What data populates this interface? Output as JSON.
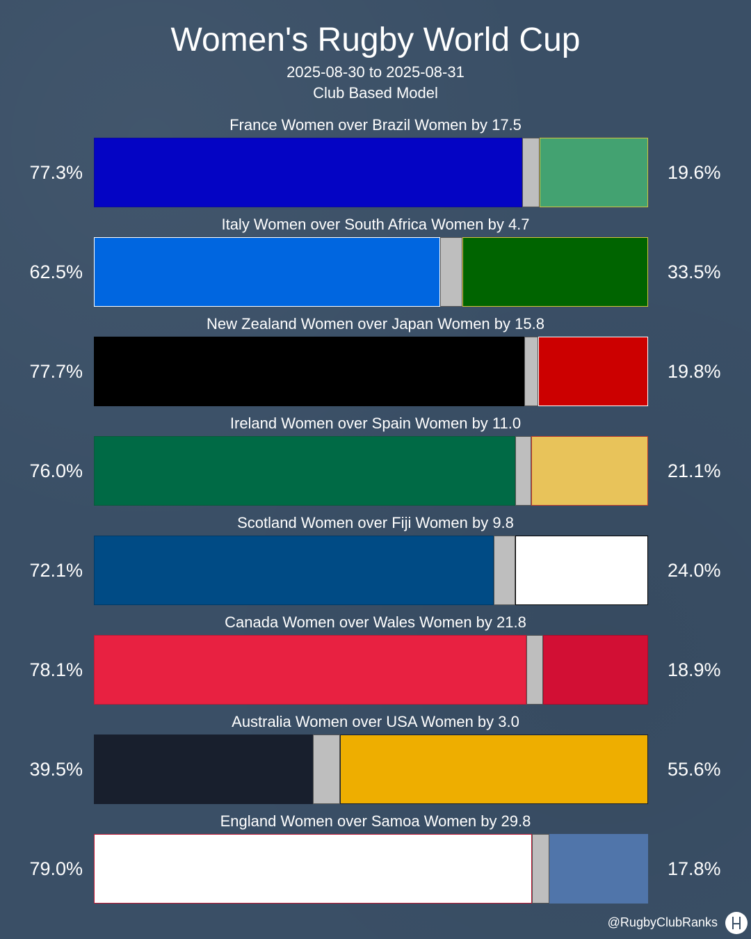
{
  "header": {
    "title": "Women's Rugby World Cup",
    "date_range": "2025-08-30 to 2025-08-31",
    "model": "Club Based Model"
  },
  "footer": {
    "credit": "@RugbyClubRanks",
    "logo_icon": "goalposts-icon"
  },
  "chart_data": {
    "type": "bar",
    "orientation": "horizontal-stacked",
    "segments": [
      "team1_win",
      "draw",
      "team2_win"
    ],
    "matches": [
      {
        "label": "France Women over Brazil Women by 17.5",
        "team1": "France Women",
        "team2": "Brazil Women",
        "margin": 17.5,
        "p1": 77.3,
        "p2": 19.6,
        "p1_label": "77.3%",
        "p2_label": "19.6%",
        "color1": "#0404c4",
        "color2": "#43a271",
        "border1": "#0a0a9a",
        "border2": "#d4c53a"
      },
      {
        "label": "Italy Women over South Africa Women by 4.7",
        "team1": "Italy Women",
        "team2": "South Africa Women",
        "margin": 4.7,
        "p1": 62.5,
        "p2": 33.5,
        "p1_label": "62.5%",
        "p2_label": "33.5%",
        "color1": "#0066e0",
        "color2": "#006400",
        "border1": "#ffffff",
        "border2": "#d4c53a"
      },
      {
        "label": "New Zealand Women over Japan Women by 15.8",
        "team1": "New Zealand Women",
        "team2": "Japan Women",
        "margin": 15.8,
        "p1": 77.7,
        "p2": 19.8,
        "p1_label": "77.7%",
        "p2_label": "19.8%",
        "color1": "#000000",
        "color2": "#cc0000",
        "border1": "#000000",
        "border2": "#ffffff"
      },
      {
        "label": "Ireland Women over Spain Women by 11.0",
        "team1": "Ireland Women",
        "team2": "Spain Women",
        "margin": 11.0,
        "p1": 76.0,
        "p2": 21.1,
        "p1_label": "76.0%",
        "p2_label": "21.1%",
        "color1": "#006a45",
        "color2": "#e8c35a",
        "border1": "#0a5a3a",
        "border2": "#c0392b"
      },
      {
        "label": "Scotland Women over Fiji Women by 9.8",
        "team1": "Scotland Women",
        "team2": "Fiji Women",
        "margin": 9.8,
        "p1": 72.1,
        "p2": 24.0,
        "p1_label": "72.1%",
        "p2_label": "24.0%",
        "color1": "#004b85",
        "color2": "#ffffff",
        "border1": "#003a66",
        "border2": "#000000"
      },
      {
        "label": "Canada Women over Wales Women by 21.8",
        "team1": "Canada Women",
        "team2": "Wales Women",
        "margin": 21.8,
        "p1": 78.1,
        "p2": 18.9,
        "p1_label": "78.1%",
        "p2_label": "18.9%",
        "color1": "#e82141",
        "color2": "#d20f34",
        "border1": "#c01a35",
        "border2": "#aa0c2a"
      },
      {
        "label": "Australia Women over USA Women by 3.0",
        "team1": "Australia Women",
        "team2": "USA Women",
        "margin": 3.0,
        "p1": 39.5,
        "p2": 55.6,
        "p1_label": "39.5%",
        "p2_label": "55.6%",
        "color1": "#181f2d",
        "color2": "#eeae00",
        "border1": "#181f2d",
        "border2": "#181f2d"
      },
      {
        "label": "England Women over Samoa Women by 29.8",
        "team1": "England Women",
        "team2": "Samoa Women",
        "margin": 29.8,
        "p1": 79.0,
        "p2": 17.8,
        "p1_label": "79.0%",
        "p2_label": "17.8%",
        "color1": "#ffffff",
        "color2": "#5075aa",
        "border1": "#c01a35",
        "border2": "#5075aa"
      }
    ],
    "draw_color": "#bebebe"
  }
}
